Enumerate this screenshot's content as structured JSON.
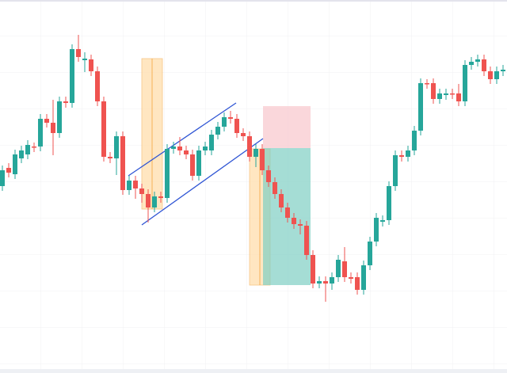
{
  "chart_data": {
    "type": "candlestick",
    "up_color": "#26a69a",
    "down_color": "#ef5350",
    "ylim": [
      0,
      471
    ],
    "open": [
      236,
      259,
      251,
      271,
      276,
      286,
      286,
      321,
      316,
      303,
      343,
      341,
      409,
      395,
      396,
      381,
      343,
      273,
      271,
      299,
      231,
      243,
      233,
      226,
      209,
      223,
      221,
      283,
      286,
      281,
      276,
      249,
      281,
      281,
      301,
      311,
      323,
      321,
      303,
      299,
      273,
      283,
      256,
      241,
      226,
      209,
      196,
      188,
      186,
      149,
      113,
      116,
      113,
      121,
      141,
      121,
      121,
      105,
      136,
      166,
      191,
      193,
      236,
      275,
      273,
      281,
      306,
      366,
      366,
      346,
      351,
      353,
      353,
      343,
      389,
      393,
      396,
      381,
      371,
      381
    ],
    "high": [
      262,
      265,
      282,
      287,
      294,
      291,
      327,
      327,
      345,
      349,
      349,
      415,
      427,
      405,
      402,
      387,
      349,
      279,
      305,
      305,
      249,
      249,
      239,
      232,
      229,
      229,
      289,
      292,
      298,
      287,
      282,
      287,
      292,
      307,
      317,
      329,
      331,
      327,
      309,
      305,
      289,
      289,
      262,
      247,
      232,
      215,
      202,
      194,
      192,
      155,
      122,
      122,
      127,
      149,
      159,
      127,
      127,
      142,
      172,
      202,
      199,
      242,
      281,
      281,
      287,
      312,
      372,
      371,
      372,
      359,
      359,
      359,
      365,
      395,
      399,
      402,
      402,
      387,
      387,
      389
    ],
    "low": [
      230,
      247,
      245,
      265,
      270,
      279,
      280,
      310,
      275,
      297,
      335,
      335,
      393,
      380,
      375,
      337,
      267,
      265,
      250,
      225,
      225,
      220,
      215,
      190,
      203,
      215,
      215,
      277,
      275,
      270,
      243,
      243,
      275,
      275,
      295,
      305,
      315,
      297,
      293,
      267,
      260,
      250,
      235,
      220,
      203,
      190,
      182,
      175,
      143,
      107,
      107,
      90,
      105,
      115,
      115,
      113,
      99,
      99,
      130,
      160,
      185,
      187,
      230,
      267,
      267,
      275,
      300,
      359,
      340,
      340,
      345,
      346,
      337,
      337,
      383,
      387,
      375,
      365,
      365,
      375
    ],
    "close": [
      256,
      253,
      276,
      281,
      288,
      285,
      321,
      316,
      303,
      343,
      341,
      409,
      399,
      397,
      381,
      343,
      273,
      271,
      299,
      231,
      243,
      233,
      226,
      209,
      223,
      221,
      283,
      286,
      281,
      276,
      249,
      281,
      286,
      301,
      311,
      323,
      321,
      303,
      299,
      273,
      283,
      256,
      241,
      226,
      209,
      196,
      188,
      186,
      149,
      113,
      116,
      113,
      121,
      143,
      121,
      119,
      105,
      136,
      166,
      196,
      193,
      236,
      275,
      273,
      281,
      306,
      366,
      365,
      346,
      353,
      353,
      352,
      343,
      389,
      393,
      396,
      381,
      371,
      381,
      383
    ]
  }
}
